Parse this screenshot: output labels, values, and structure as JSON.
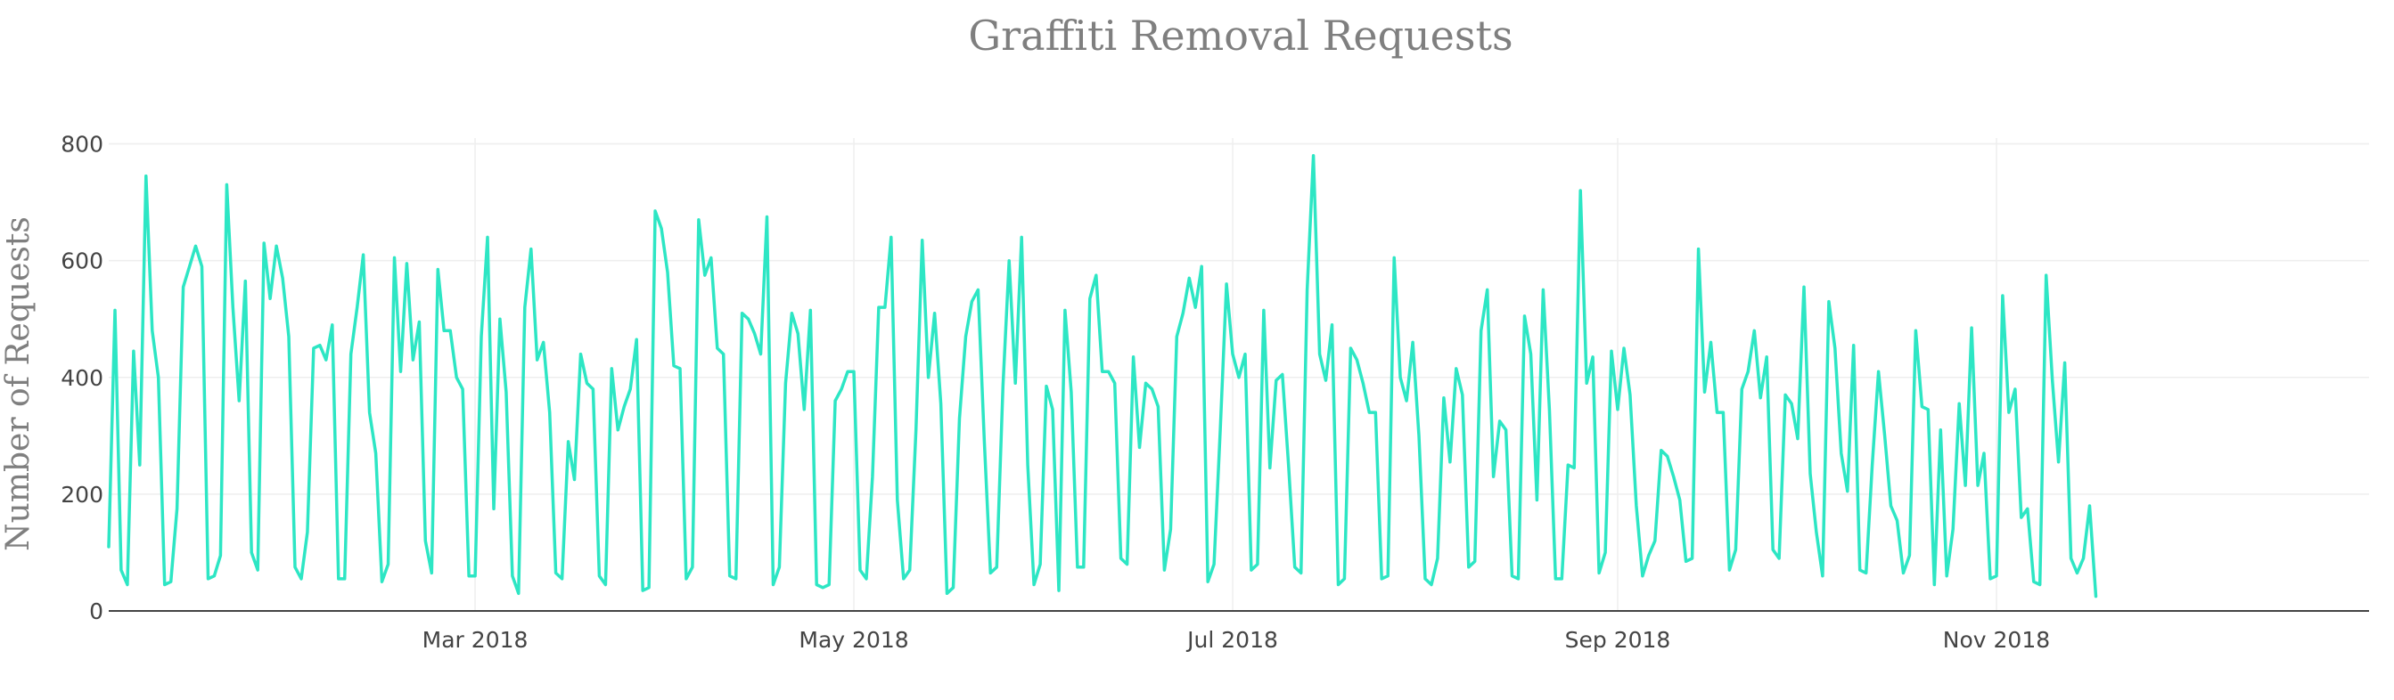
{
  "chart_data": {
    "type": "line",
    "title": "Graffiti Removal Requests",
    "xlabel": "",
    "ylabel": "Number of Requests",
    "color": "#2de6c4",
    "grid": true,
    "x_range": [
      "2018-01-01",
      "2018-12-31"
    ],
    "ylim": [
      0,
      810
    ],
    "y_ticks": [
      {
        "value": 0,
        "label": "0"
      },
      {
        "value": 200,
        "label": "200"
      },
      {
        "value": 400,
        "label": "400"
      },
      {
        "value": 600,
        "label": "600"
      },
      {
        "value": 800,
        "label": "800"
      }
    ],
    "x_ticks": [
      {
        "date": "2018-03-01",
        "label": "Mar 2018"
      },
      {
        "date": "2018-05-01",
        "label": "May 2018"
      },
      {
        "date": "2018-07-01",
        "label": "Jul 2018"
      },
      {
        "date": "2018-09-01",
        "label": "Sep 2018"
      },
      {
        "date": "2018-11-01",
        "label": "Nov 2018"
      }
    ],
    "series": [
      {
        "name": "Requests",
        "start_date": "2018-01-01",
        "interval_days": 1,
        "values": [
          110,
          515,
          70,
          45,
          445,
          250,
          745,
          480,
          400,
          45,
          50,
          175,
          555,
          590,
          625,
          590,
          55,
          60,
          95,
          730,
          520,
          360,
          565,
          100,
          70,
          630,
          535,
          625,
          570,
          470,
          75,
          55,
          135,
          450,
          455,
          430,
          490,
          55,
          55,
          440,
          520,
          610,
          340,
          270,
          50,
          80,
          605,
          410,
          595,
          430,
          495,
          120,
          65,
          585,
          480,
          480,
          400,
          380,
          60,
          60,
          470,
          640,
          175,
          500,
          375,
          60,
          30,
          520,
          620,
          430,
          460,
          340,
          65,
          55,
          290,
          225,
          440,
          390,
          380,
          60,
          45,
          415,
          310,
          350,
          380,
          465,
          35,
          40,
          685,
          655,
          580,
          420,
          415,
          55,
          75,
          670,
          575,
          605,
          450,
          440,
          60,
          55,
          510,
          500,
          475,
          440,
          675,
          45,
          75,
          390,
          510,
          475,
          345,
          515,
          45,
          40,
          45,
          360,
          380,
          410,
          410,
          70,
          55,
          230,
          520,
          520,
          640,
          190,
          55,
          70,
          310,
          635,
          400,
          510,
          355,
          30,
          40,
          330,
          470,
          530,
          550,
          290,
          65,
          75,
          385,
          600,
          390,
          640,
          250,
          45,
          80,
          385,
          345,
          35,
          515,
          375,
          75,
          75,
          535,
          575,
          410,
          410,
          390,
          90,
          80,
          435,
          280,
          390,
          380,
          350,
          70,
          140,
          470,
          510,
          570,
          520,
          590,
          50,
          80,
          310,
          560,
          440,
          400,
          440,
          70,
          80,
          515,
          245,
          395,
          405,
          250,
          75,
          65,
          550,
          780,
          440,
          395,
          490,
          45,
          55,
          450,
          430,
          390,
          340,
          340,
          55,
          60,
          605,
          400,
          360,
          460,
          300,
          55,
          45,
          90,
          365,
          255,
          415,
          370,
          75,
          85,
          480,
          550,
          230,
          325,
          310,
          60,
          55,
          505,
          440,
          190,
          550,
          345,
          55,
          55,
          250,
          245,
          720,
          390,
          435,
          65,
          100,
          445,
          345,
          450,
          370,
          180,
          60,
          95,
          120,
          275,
          265,
          230,
          190,
          85,
          90,
          620,
          375,
          460,
          340,
          340,
          70,
          105,
          380,
          410,
          480,
          365,
          435,
          105,
          90,
          370,
          355,
          295,
          555,
          235,
          135,
          60,
          530,
          450,
          270,
          205,
          455,
          70,
          65,
          250,
          410,
          300,
          180,
          155,
          65,
          95,
          480,
          350,
          345,
          45,
          310,
          60,
          140,
          355,
          215,
          485,
          215,
          270,
          55,
          60,
          540,
          340,
          380,
          160,
          175,
          50,
          45,
          575,
          395,
          255,
          425,
          90,
          65,
          90,
          180,
          25
        ]
      }
    ]
  }
}
